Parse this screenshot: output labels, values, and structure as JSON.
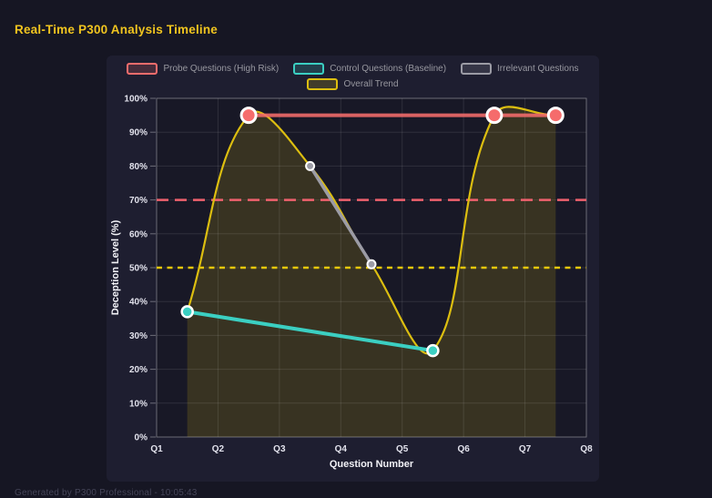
{
  "page": {
    "title": "Real-Time P300 Analysis Timeline",
    "footer": "Generated by P300 Professional - 10:05:43"
  },
  "colors": {
    "page_bg": "#161623",
    "card_bg": "#1e1e30",
    "plot_bg": "#181826",
    "title_yellow": "#f0c41f",
    "probe_red": "#f56c6c",
    "control_teal": "#3bcfc2",
    "irrelevant_gray": "#9b9ba5",
    "trend_yellow": "#dcbe10",
    "threshold_red": "#f0616e",
    "threshold_yellow": "#e6c70c",
    "legend_text": "#97979f",
    "tick_text": "#e2e2ec"
  },
  "chart_data": {
    "type": "line",
    "title": "Real-Time P300 Analysis Timeline",
    "xlabel": "Question Number",
    "ylabel": "Deception Level (%)",
    "xlim": [
      1,
      8
    ],
    "ylim": [
      0,
      100
    ],
    "x_tick_positions": [
      1,
      2,
      3,
      4,
      5,
      6,
      7,
      8
    ],
    "x_tick_labels": [
      "Q1",
      "Q2",
      "Q3",
      "Q4",
      "Q5",
      "Q6",
      "Q7",
      "Q8"
    ],
    "y_tick_values": [
      0,
      10,
      20,
      30,
      40,
      50,
      60,
      70,
      80,
      90,
      100
    ],
    "y_tick_suffix": "%",
    "grid": true,
    "legend_position": "top",
    "series": [
      {
        "name": "Probe Questions (High Risk)",
        "color": "#f56c6c",
        "x": [
          2.5,
          6.5,
          7.5
        ],
        "values": [
          95,
          95,
          95
        ]
      },
      {
        "name": "Control Questions (Baseline)",
        "color": "#3bcfc2",
        "x": [
          1.5,
          5.5
        ],
        "values": [
          37,
          25.5
        ]
      },
      {
        "name": "Irrelevant Questions",
        "color": "#9b9ba5",
        "x": [
          3.5,
          4.5
        ],
        "values": [
          80,
          51
        ]
      },
      {
        "name": "Overall Trend",
        "color": "#dcbe10",
        "x": [
          1.5,
          2.5,
          3.5,
          4.5,
          5.5,
          6.5,
          7.5
        ],
        "values": [
          37,
          95,
          80,
          51,
          25.5,
          95,
          95
        ],
        "smooth": true,
        "area": true
      }
    ],
    "thresholds": [
      {
        "value": 70,
        "color": "#f0616e",
        "style": "dashed"
      },
      {
        "value": 50,
        "color": "#e6c70c",
        "style": "dotted"
      }
    ]
  }
}
